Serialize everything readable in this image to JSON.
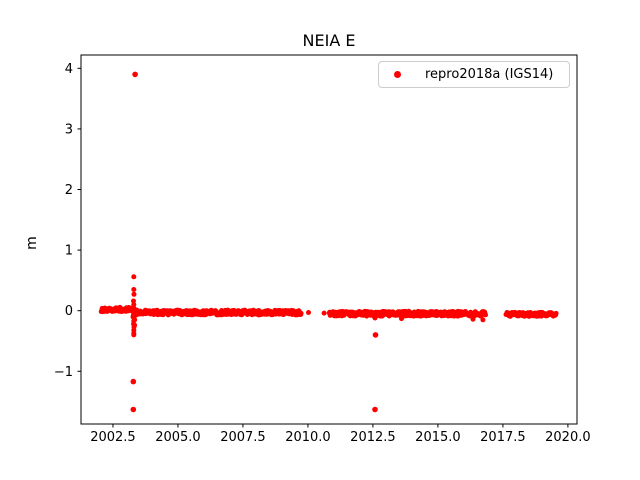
{
  "chart_data": {
    "type": "scatter",
    "title": "NEIA E",
    "xlabel": "",
    "ylabel": "m",
    "legend_label": "repro2018a (IGS14)",
    "legend_position": "upper right",
    "marker_color": "#ff0000",
    "grid": false,
    "xlim": [
      2001.27,
      2020.35
    ],
    "ylim": [
      -1.87,
      4.22
    ],
    "x_ticks": [
      2002.5,
      2005.0,
      2007.5,
      2010.0,
      2012.5,
      2015.0,
      2017.5,
      2020.0
    ],
    "x_tick_labels": [
      "2002.5",
      "2005.0",
      "2007.5",
      "2010.0",
      "2012.5",
      "2015.0",
      "2017.5",
      "2020.0"
    ],
    "y_ticks": [
      -1,
      0,
      1,
      2,
      3,
      4
    ],
    "y_tick_labels": [
      "−1",
      "0",
      "1",
      "2",
      "3",
      "4"
    ],
    "series": [
      {
        "name": "repro2018a (IGS14)",
        "band_segments": [
          {
            "x0": 2002.05,
            "x1": 2003.27,
            "y": 0.02,
            "th": 0.07
          },
          {
            "x0": 2003.33,
            "x1": 2009.75,
            "y": -0.03,
            "th": 0.08
          },
          {
            "x0": 2010.82,
            "x1": 2016.85,
            "y": -0.05,
            "th": 0.08
          },
          {
            "x0": 2017.62,
            "x1": 2019.55,
            "y": -0.06,
            "th": 0.07
          }
        ],
        "cluster_points": [
          [
            2003.3,
            0.56
          ],
          [
            2003.3,
            0.35
          ],
          [
            2003.31,
            0.27
          ],
          [
            2003.29,
            0.16
          ],
          [
            2003.3,
            0.1
          ],
          [
            2003.31,
            0.04
          ],
          [
            2003.3,
            -0.02
          ],
          [
            2003.29,
            -0.07
          ],
          [
            2003.31,
            -0.12
          ],
          [
            2003.27,
            -0.1
          ],
          [
            2003.33,
            -0.15
          ],
          [
            2003.3,
            -0.17
          ],
          [
            2003.29,
            -0.22
          ],
          [
            2003.33,
            -0.24
          ],
          [
            2003.31,
            -0.27
          ],
          [
            2003.3,
            -0.32
          ],
          [
            2003.3,
            -0.37
          ],
          [
            2003.3,
            -0.4
          ]
        ],
        "isolated_points": [
          [
            2010.02,
            -0.03
          ],
          [
            2010.62,
            -0.04
          ],
          [
            2012.58,
            -0.12
          ],
          [
            2013.6,
            -0.13
          ],
          [
            2016.35,
            -0.14
          ],
          [
            2016.73,
            -0.15
          ]
        ],
        "outliers": [
          [
            2003.35,
            3.9
          ],
          [
            2003.28,
            -1.17
          ],
          [
            2003.28,
            -1.63
          ],
          [
            2012.6,
            -0.4
          ],
          [
            2012.58,
            -1.63
          ]
        ]
      }
    ]
  }
}
